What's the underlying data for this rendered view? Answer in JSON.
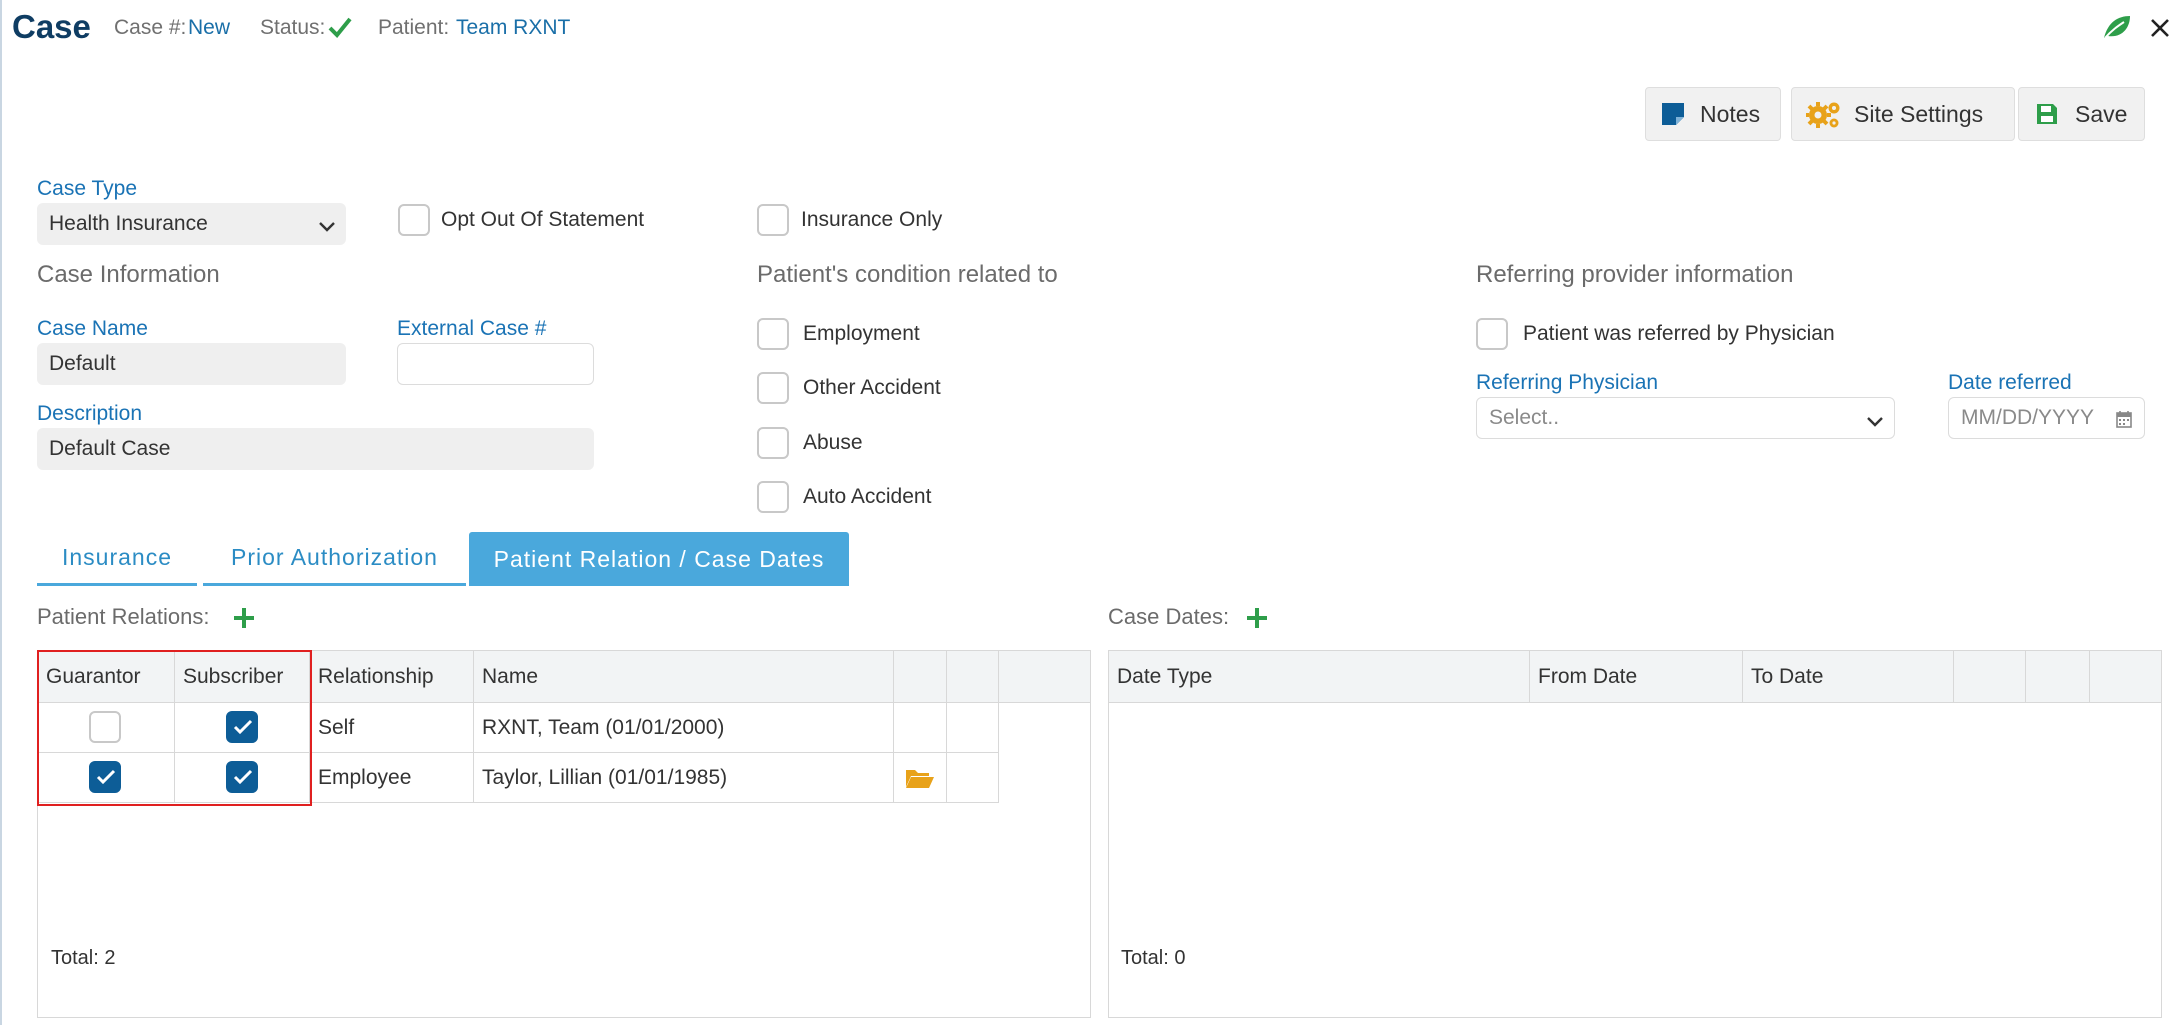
{
  "header": {
    "title": "Case",
    "case_num_label": "Case #:",
    "case_num_value": "New",
    "status_label": "Status:",
    "patient_label": "Patient:",
    "patient_value": "Team RXNT"
  },
  "toolbar": {
    "notes_label": "Notes",
    "site_settings_label": "Site Settings",
    "save_label": "Save"
  },
  "case_type": {
    "label": "Case Type",
    "value": "Health Insurance"
  },
  "options": {
    "opt_out_label": "Opt Out Of Statement",
    "insurance_only_label": "Insurance Only"
  },
  "case_info": {
    "title": "Case Information",
    "case_name_label": "Case Name",
    "case_name_value": "Default",
    "external_case_label": "External Case #",
    "external_case_value": "",
    "description_label": "Description",
    "description_value": "Default Case"
  },
  "condition": {
    "title": "Patient's condition related to",
    "items": [
      "Employment",
      "Other Accident",
      "Abuse",
      "Auto Accident"
    ]
  },
  "referring": {
    "title": "Referring provider information",
    "referred_label": "Patient was referred by Physician",
    "physician_label": "Referring Physician",
    "physician_placeholder": "Select..",
    "date_label": "Date referred",
    "date_placeholder": "MM/DD/YYYY"
  },
  "tabs": [
    {
      "label": "Insurance",
      "active": false
    },
    {
      "label": "Prior Authorization",
      "active": false
    },
    {
      "label": "Patient Relation / Case Dates",
      "active": true
    }
  ],
  "patient_relations": {
    "title": "Patient Relations:",
    "columns": [
      "Guarantor",
      "Subscriber",
      "Relationship",
      "Name"
    ],
    "rows": [
      {
        "guarantor": false,
        "subscriber": true,
        "relationship": "Self",
        "name": "RXNT, Team (01/01/2000)",
        "has_folder": false
      },
      {
        "guarantor": true,
        "subscriber": true,
        "relationship": "Employee",
        "name": "Taylor, Lillian (01/01/1985)",
        "has_folder": true
      }
    ],
    "total": "Total: 2"
  },
  "case_dates": {
    "title": "Case Dates:",
    "columns": [
      "Date Type",
      "From Date",
      "To Date"
    ],
    "total": "Total: 0"
  },
  "colors": {
    "accent_blue": "#1a73b5",
    "active_tab": "#4aa8dc",
    "check_blue": "#0d5d97",
    "green": "#2e9e4a",
    "highlight_red": "#e02020",
    "folder_orange": "#e8a21a"
  },
  "icons": [
    "check-icon",
    "leaf-icon",
    "close-icon",
    "notes-icon",
    "gears-icon",
    "save-icon",
    "chevron-down-icon",
    "calendar-icon",
    "plus-icon",
    "folder-open-icon"
  ]
}
